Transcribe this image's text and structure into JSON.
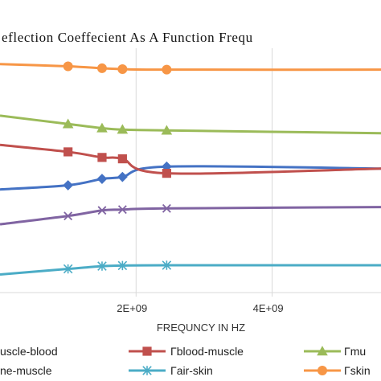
{
  "chart_data": {
    "type": "line",
    "title": "eflection Coeffecient As A Function Frequ",
    "xlabel": "FREQUNCY IN HZ",
    "ylabel": "",
    "xlim": [
      0,
      5600000000
    ],
    "ylim": [
      0,
      10.5
    ],
    "grid": {
      "x": true,
      "y": false
    },
    "legend_position": "bottom",
    "x_ticks": [
      {
        "value": 2000000000,
        "label": "2E+09"
      },
      {
        "value": 4000000000,
        "label": "4E+09"
      }
    ],
    "series": [
      {
        "name": "uscle-blood",
        "color": "#4472c4",
        "marker": "diamond",
        "x": [
          0,
          1000000000,
          1500000000,
          1800000000,
          2450000000,
          5600000000
        ],
        "y": [
          3.7,
          3.85,
          4.08,
          4.15,
          4.52,
          4.45
        ]
      },
      {
        "name": "Γblood-muscle",
        "color": "#c0504d",
        "marker": "square",
        "x": [
          0,
          1000000000,
          1500000000,
          1800000000,
          2450000000,
          5600000000
        ],
        "y": [
          5.3,
          5.05,
          4.85,
          4.8,
          4.28,
          4.45
        ]
      },
      {
        "name": "Γmu",
        "color": "#9bbb59",
        "marker": "triangle",
        "x": [
          0,
          1000000000,
          1500000000,
          1800000000,
          2450000000,
          5600000000
        ],
        "y": [
          6.35,
          6.05,
          5.9,
          5.85,
          5.82,
          5.72
        ]
      },
      {
        "name": "ne-muscle",
        "color": "#8064a2",
        "marker": "x",
        "x": [
          0,
          1000000000,
          1500000000,
          1800000000,
          2450000000,
          5600000000
        ],
        "y": [
          2.45,
          2.75,
          2.95,
          2.98,
          3.02,
          3.07
        ]
      },
      {
        "name": "Γair-skin",
        "color": "#4bacc6",
        "marker": "star",
        "x": [
          0,
          1000000000,
          1500000000,
          1800000000,
          2450000000,
          5600000000
        ],
        "y": [
          0.65,
          0.85,
          0.95,
          0.97,
          0.98,
          0.98
        ]
      },
      {
        "name": "Γskin",
        "color": "#f79646",
        "marker": "circle",
        "x": [
          0,
          1000000000,
          1500000000,
          1800000000,
          2450000000,
          5600000000
        ],
        "y": [
          8.2,
          8.12,
          8.05,
          8.02,
          8.0,
          8.0
        ]
      }
    ]
  }
}
